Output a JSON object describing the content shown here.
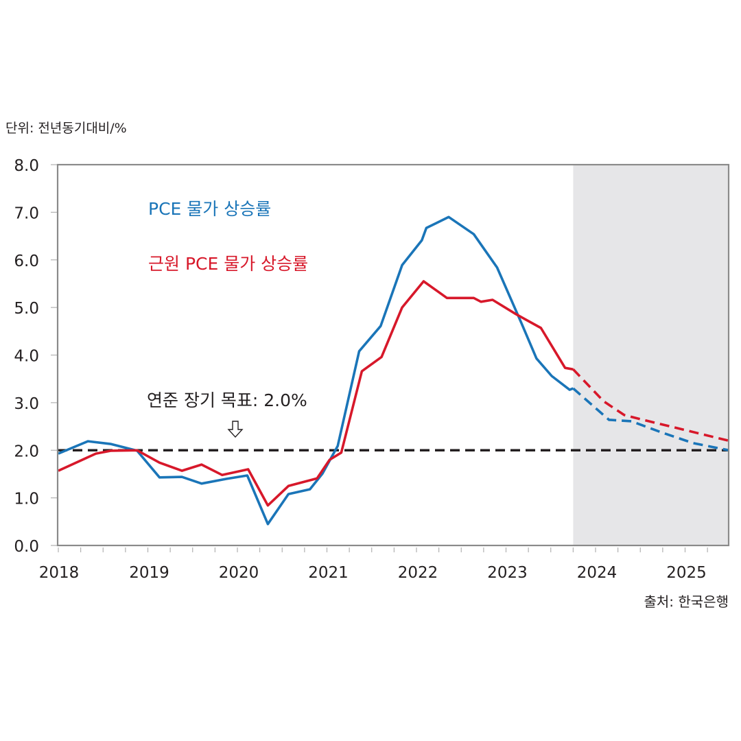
{
  "chart_data": {
    "type": "line",
    "unit_label": "단위: 전년동기대비/%",
    "source": "출처: 한국은행",
    "ylim": [
      0,
      8
    ],
    "xlim": [
      2018.0,
      2025.5
    ],
    "yticks": [
      "0.0",
      "1.0",
      "2.0",
      "3.0",
      "4.0",
      "5.0",
      "6.0",
      "7.0",
      "8.0"
    ],
    "ytick_values": [
      0,
      1,
      2,
      3,
      4,
      5,
      6,
      7,
      8
    ],
    "xticks": [
      "2018",
      "2019",
      "2020",
      "2021",
      "2022",
      "2023",
      "2024",
      "2025"
    ],
    "xtick_values": [
      2018,
      2019,
      2020,
      2021,
      2022,
      2023,
      2024,
      2025
    ],
    "forecast_start": 2023.75,
    "grid": false,
    "target_line": {
      "value": 2.0,
      "label": "연준 장기 목표: 2.0%",
      "color": "#231f20",
      "arrow": "down-arrow-icon"
    },
    "series": [
      {
        "name": "PCE 물가 상승률",
        "color": "#1a75b8",
        "actual": [
          [
            2018.0,
            1.93
          ],
          [
            2018.33,
            2.19
          ],
          [
            2018.59,
            2.13
          ],
          [
            2018.88,
            1.99
          ],
          [
            2019.13,
            1.43
          ],
          [
            2019.38,
            1.44
          ],
          [
            2019.6,
            1.3
          ],
          [
            2019.88,
            1.4
          ],
          [
            2020.11,
            1.47
          ],
          [
            2020.34,
            0.45
          ],
          [
            2020.57,
            1.08
          ],
          [
            2020.81,
            1.18
          ],
          [
            2020.95,
            1.51
          ],
          [
            2021.12,
            2.09
          ],
          [
            2021.36,
            4.08
          ],
          [
            2021.6,
            4.61
          ],
          [
            2021.84,
            5.89
          ],
          [
            2022.06,
            6.41
          ],
          [
            2022.11,
            6.67
          ],
          [
            2022.36,
            6.9
          ],
          [
            2022.64,
            6.54
          ],
          [
            2022.9,
            5.84
          ],
          [
            2023.17,
            4.68
          ],
          [
            2023.34,
            3.93
          ],
          [
            2023.51,
            3.56
          ],
          [
            2023.71,
            3.27
          ],
          [
            2023.75,
            3.3
          ]
        ],
        "forecast": [
          [
            2023.75,
            3.3
          ],
          [
            2024.15,
            2.64
          ],
          [
            2024.4,
            2.61
          ],
          [
            2024.73,
            2.38
          ],
          [
            2025.09,
            2.15
          ],
          [
            2025.49,
            2.0
          ]
        ]
      },
      {
        "name": "근원 PCE 물가 상승률",
        "color": "#d7182a",
        "actual": [
          [
            2018.0,
            1.57
          ],
          [
            2018.42,
            1.93
          ],
          [
            2018.59,
            1.99
          ],
          [
            2018.88,
            2.0
          ],
          [
            2019.13,
            1.74
          ],
          [
            2019.38,
            1.57
          ],
          [
            2019.6,
            1.7
          ],
          [
            2019.83,
            1.48
          ],
          [
            2020.12,
            1.6
          ],
          [
            2020.34,
            0.84
          ],
          [
            2020.57,
            1.25
          ],
          [
            2020.89,
            1.41
          ],
          [
            2021.03,
            1.8
          ],
          [
            2021.16,
            1.95
          ],
          [
            2021.39,
            3.66
          ],
          [
            2021.61,
            3.96
          ],
          [
            2021.84,
            5.0
          ],
          [
            2022.08,
            5.55
          ],
          [
            2022.34,
            5.2
          ],
          [
            2022.64,
            5.2
          ],
          [
            2022.72,
            5.12
          ],
          [
            2022.85,
            5.16
          ],
          [
            2023.11,
            4.86
          ],
          [
            2023.39,
            4.57
          ],
          [
            2023.66,
            3.73
          ],
          [
            2023.75,
            3.7
          ]
        ],
        "forecast": [
          [
            2023.75,
            3.7
          ],
          [
            2024.09,
            3.03
          ],
          [
            2024.32,
            2.74
          ],
          [
            2024.51,
            2.65
          ],
          [
            2025.49,
            2.2
          ]
        ]
      }
    ]
  },
  "colors": {
    "frame": "#8a8a8a",
    "forecast_shade": "#e6e6e8",
    "target_line": "#231f20"
  }
}
